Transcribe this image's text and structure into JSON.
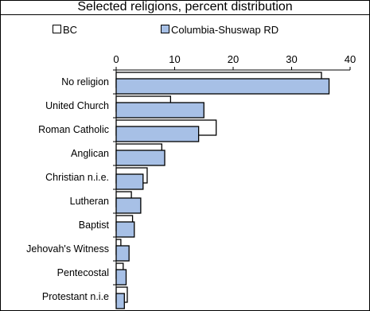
{
  "chart_data": {
    "type": "bar",
    "orientation": "horizontal",
    "title": "Selected religions, percent distribution",
    "categories": [
      "No religion",
      "United Church",
      "Roman Catholic",
      "Anglican",
      "Christian n.i.e.",
      "Lutheran",
      "Baptist",
      "Jehovah's Witness",
      "Pentecostal",
      "Protestant n.i.e"
    ],
    "series": [
      {
        "name": "BC",
        "color": "#ffffff",
        "values": [
          35.1,
          9.3,
          17.1,
          7.8,
          5.3,
          2.6,
          2.8,
          0.8,
          1.2,
          1.9
        ]
      },
      {
        "name": "Columbia-Shuswap RD",
        "color": "#a7c0e6",
        "values": [
          36.4,
          15.0,
          14.1,
          8.3,
          4.6,
          4.2,
          3.1,
          2.2,
          1.7,
          1.4
        ]
      }
    ],
    "xlim": [
      0,
      40
    ],
    "xticks": [
      0,
      10,
      20,
      30,
      40
    ],
    "xaxis_position": "top",
    "legend": "top",
    "grid": false
  }
}
